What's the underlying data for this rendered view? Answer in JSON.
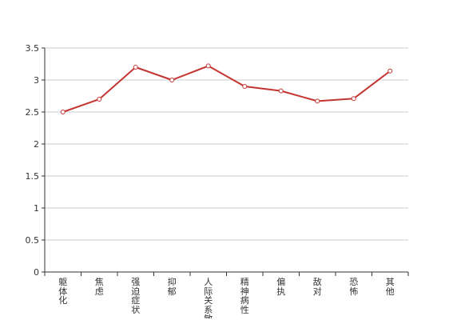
{
  "chart_data": {
    "type": "line",
    "categories": [
      "躯体化",
      "焦虑",
      "强迫症状",
      "抑郁",
      "人际关系敏感",
      "精神病性",
      "偏执",
      "敌对",
      "恐怖",
      "其他"
    ],
    "series": [
      {
        "values": [
          2.5,
          2.7,
          3.2,
          3.0,
          3.22,
          2.9,
          2.83,
          2.67,
          2.71,
          3.14
        ]
      }
    ],
    "yticks": [
      "0",
      "0.5",
      "1",
      "1.5",
      "2",
      "2.5",
      "3",
      "3.5"
    ],
    "ylim": [
      0,
      3.5
    ],
    "grid": true,
    "line_color": "#c23531",
    "grid_color": "#cccccc"
  }
}
